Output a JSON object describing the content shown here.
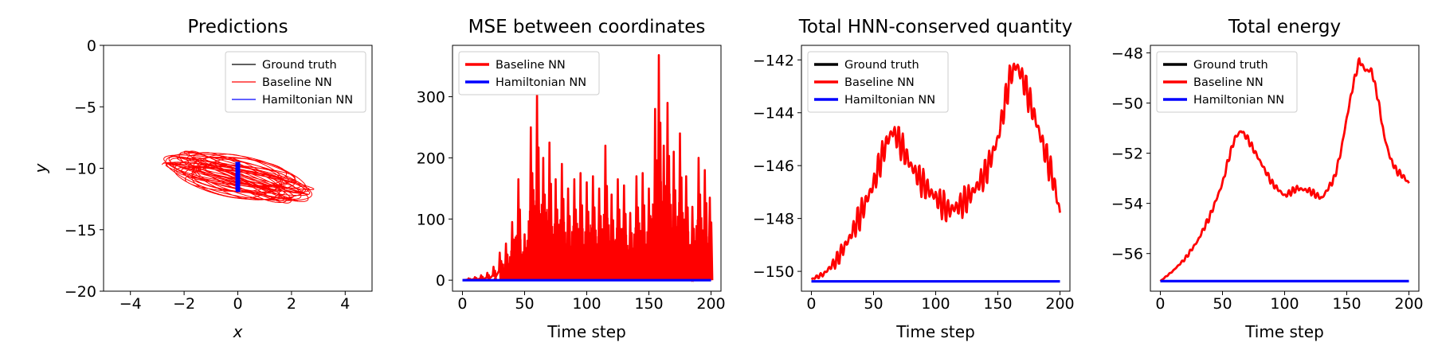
{
  "colors": {
    "ground_truth": "#000000",
    "baseline": "#ff0000",
    "hamiltonian": "#0000ff"
  },
  "chart_data": [
    {
      "type": "line",
      "title": "Predictions",
      "xlabel": "x",
      "ylabel": "y",
      "xlim": [
        -5,
        5
      ],
      "ylim": [
        -20,
        0
      ],
      "xticks": [
        -4,
        -2,
        0,
        2,
        4
      ],
      "yticks": [
        0,
        -5,
        -10,
        -15,
        -20
      ],
      "legend_position": "top-right",
      "legend": [
        "Ground truth",
        "Baseline NN",
        "Hamiltonian NN"
      ],
      "series": [
        {
          "name": "Ground truth",
          "color": "#000000",
          "note": "trajectory hidden beneath Hamiltonian NN",
          "x": [
            0.0,
            0.02,
            0.0,
            -0.02,
            0.0
          ],
          "y": [
            -9.6,
            -10.5,
            -11.4,
            -10.5,
            -9.6
          ]
        },
        {
          "name": "Baseline NN",
          "color": "#ff0000",
          "x_range": [
            -2.9,
            2.9
          ],
          "y_range": [
            -13.9,
            -7.8
          ],
          "orbit_center": [
            0.0,
            -10.7
          ]
        },
        {
          "name": "Hamiltonian NN",
          "color": "#0000ff",
          "x": [
            0.0,
            0.02,
            0.0,
            -0.02,
            0.0
          ],
          "y": [
            -9.6,
            -10.5,
            -11.8,
            -10.5,
            -9.6
          ]
        }
      ]
    },
    {
      "type": "line",
      "title": "MSE between coordinates",
      "xlabel": "Time step",
      "ylabel": "",
      "xlim": [
        -8,
        208
      ],
      "ylim": [
        -18,
        384
      ],
      "xticks": [
        0,
        50,
        100,
        150,
        200
      ],
      "yticks": [
        0,
        100,
        200,
        300
      ],
      "legend_position": "top-left",
      "legend": [
        "Baseline NN",
        "Hamiltonian NN"
      ],
      "series": [
        {
          "name": "Baseline NN",
          "color": "#ff0000",
          "peaks": [
            [
              5,
              3
            ],
            [
              10,
              5
            ],
            [
              15,
              8
            ],
            [
              20,
              12
            ],
            [
              25,
              22
            ],
            [
              30,
              45
            ],
            [
              35,
              60
            ],
            [
              40,
              95
            ],
            [
              45,
              165
            ],
            [
              50,
              75
            ],
            [
              55,
              250
            ],
            [
              60,
              310
            ],
            [
              65,
              200
            ],
            [
              70,
              225
            ],
            [
              75,
              165
            ],
            [
              80,
              190
            ],
            [
              85,
              150
            ],
            [
              90,
              165
            ],
            [
              95,
              175
            ],
            [
              100,
              160
            ],
            [
              105,
              170
            ],
            [
              110,
              150
            ],
            [
              115,
              220
            ],
            [
              120,
              140
            ],
            [
              125,
              165
            ],
            [
              130,
              155
            ],
            [
              135,
              110
            ],
            [
              140,
              170
            ],
            [
              145,
              175
            ],
            [
              150,
              150
            ],
            [
              155,
              280
            ],
            [
              158,
              368
            ],
            [
              162,
              220
            ],
            [
              165,
              290
            ],
            [
              170,
              210
            ],
            [
              175,
              240
            ],
            [
              180,
              170
            ],
            [
              185,
              120
            ],
            [
              190,
              200
            ],
            [
              195,
              180
            ],
            [
              199,
              135
            ]
          ]
        },
        {
          "name": "Hamiltonian NN",
          "color": "#0000ff",
          "x": [
            0,
            200
          ],
          "y": [
            0,
            0
          ]
        }
      ]
    },
    {
      "type": "line",
      "title": "Total HNN-conserved quantity",
      "xlabel": "Time step",
      "ylabel": "",
      "xlim": [
        -8,
        208
      ],
      "ylim": [
        -150.75,
        -141.45
      ],
      "xticks": [
        0,
        50,
        100,
        150,
        200
      ],
      "yticks": [
        -142,
        -144,
        -146,
        -148,
        -150
      ],
      "legend_position": "top-left",
      "legend": [
        "Ground truth",
        "Baseline NN",
        "Hamiltonian NN"
      ],
      "series": [
        {
          "name": "Ground truth",
          "color": "#000000",
          "x": [
            0,
            200
          ],
          "y": [
            -150.38,
            -150.38
          ]
        },
        {
          "name": "Baseline NN",
          "color": "#ff0000",
          "x": [
            0,
            10,
            20,
            30,
            40,
            50,
            55,
            60,
            65,
            70,
            75,
            80,
            90,
            100,
            110,
            120,
            130,
            140,
            150,
            155,
            160,
            165,
            170,
            180,
            190,
            195,
            200
          ],
          "y": [
            -150.3,
            -150.1,
            -149.6,
            -148.8,
            -147.8,
            -146.7,
            -145.9,
            -145.2,
            -144.7,
            -145.0,
            -145.5,
            -146.0,
            -146.7,
            -147.2,
            -147.7,
            -147.5,
            -147.0,
            -146.3,
            -145.0,
            -143.8,
            -142.6,
            -142.2,
            -142.7,
            -144.2,
            -145.8,
            -146.6,
            -147.8
          ],
          "oscillation_amplitude": 0.6
        },
        {
          "name": "Hamiltonian NN",
          "color": "#0000ff",
          "x": [
            0,
            200
          ],
          "y": [
            -150.38,
            -150.38
          ]
        }
      ]
    },
    {
      "type": "line",
      "title": "Total energy",
      "xlabel": "Time step",
      "ylabel": "",
      "xlim": [
        -8,
        208
      ],
      "ylim": [
        -57.5,
        -47.7
      ],
      "xticks": [
        0,
        50,
        100,
        150,
        200
      ],
      "yticks": [
        -48,
        -50,
        -52,
        -54,
        -56
      ],
      "legend_position": "top-left",
      "legend": [
        "Ground truth",
        "Baseline NN",
        "Hamiltonian NN"
      ],
      "series": [
        {
          "name": "Ground truth",
          "color": "#000000",
          "x": [
            0,
            200
          ],
          "y": [
            -57.1,
            -57.1
          ]
        },
        {
          "name": "Baseline NN",
          "color": "#ff0000",
          "x": [
            0,
            5,
            10,
            20,
            30,
            40,
            50,
            55,
            60,
            65,
            70,
            80,
            90,
            100,
            110,
            120,
            130,
            135,
            140,
            145,
            150,
            155,
            160,
            165,
            170,
            175,
            180,
            185,
            190,
            195,
            200
          ],
          "y": [
            -57.1,
            -56.9,
            -56.7,
            -56.2,
            -55.5,
            -54.5,
            -53.2,
            -52.2,
            -51.4,
            -51.1,
            -51.4,
            -52.3,
            -53.2,
            -53.7,
            -53.4,
            -53.5,
            -53.8,
            -53.4,
            -53.0,
            -52.0,
            -50.6,
            -49.3,
            -48.3,
            -48.7,
            -48.7,
            -49.8,
            -51.3,
            -52.2,
            -52.7,
            -52.9,
            -53.2
          ],
          "oscillation_amplitude": 0.15
        },
        {
          "name": "Hamiltonian NN",
          "color": "#0000ff",
          "x": [
            0,
            200
          ],
          "y": [
            -57.1,
            -57.1
          ]
        }
      ]
    }
  ]
}
